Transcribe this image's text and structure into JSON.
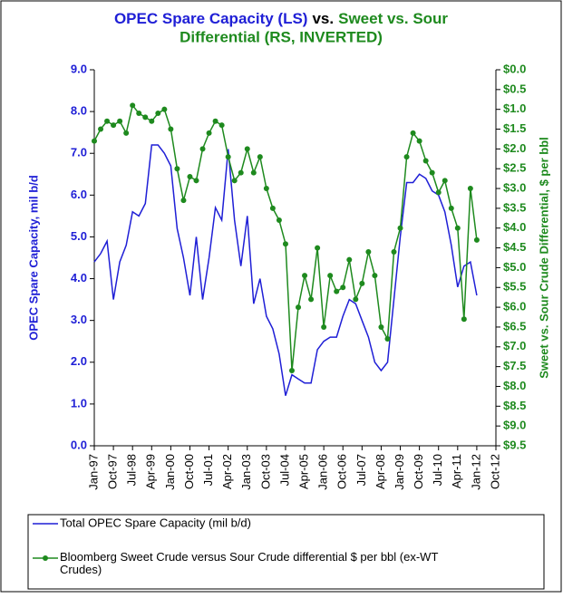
{
  "chart_data": {
    "type": "line",
    "title_parts": [
      {
        "text": "OPEC Spare Capacity (LS)",
        "color": "#1f1fd6"
      },
      {
        "text": "vs.",
        "color": "#000000"
      },
      {
        "text": "Sweet vs. Sour",
        "color": "#1e8a1e"
      },
      {
        "text": "Differential (RS, INVERTED)",
        "color": "#1e8a1e"
      }
    ],
    "y_label": "OPEC Spare Capacity, mil b/d",
    "y2_label": "Sweet vs. Sour Crude Differential, $ per bbl",
    "categories": [
      "Jan-97",
      null,
      null,
      "Oct-97",
      null,
      null,
      "Jul-98",
      null,
      null,
      "Apr-99",
      null,
      null,
      "Jan-00",
      null,
      null,
      "Oct-00",
      null,
      null,
      "Jul-01",
      null,
      null,
      "Apr-02",
      null,
      null,
      "Jan-03",
      null,
      null,
      "Oct-03",
      null,
      null,
      "Jul-04",
      null,
      null,
      "Apr-05",
      null,
      null,
      "Jan-06",
      null,
      null,
      "Oct-06",
      null,
      null,
      "Jul-07",
      null,
      null,
      "Apr-08",
      null,
      null,
      "Jan-09",
      null,
      null,
      "Oct-09",
      null,
      null,
      "Jul-10",
      null,
      null,
      "Apr-11",
      null,
      null,
      "Jan-12",
      null,
      null,
      "Oct-12"
    ],
    "series": [
      {
        "name": "Total OPEC Spare Capacity (mil b/d)",
        "color": "#1f1fd6",
        "axis": "y",
        "values": [
          4.4,
          4.6,
          4.9,
          3.5,
          4.4,
          4.8,
          5.6,
          5.5,
          5.8,
          7.2,
          7.2,
          7.0,
          6.7,
          5.2,
          4.5,
          3.6,
          5.0,
          3.5,
          4.5,
          5.7,
          5.4,
          7.1,
          5.4,
          4.3,
          5.5,
          3.4,
          4.0,
          3.1,
          2.8,
          2.2,
          1.2,
          1.7,
          1.6,
          1.5,
          1.5,
          2.3,
          2.5,
          2.6,
          2.6,
          3.1,
          3.5,
          3.4,
          3.0,
          2.6,
          2.0,
          1.8,
          2.0,
          3.5,
          5.0,
          6.3,
          6.3,
          6.5,
          6.4,
          6.1,
          6.0,
          5.6,
          4.8,
          3.8,
          4.3,
          4.4,
          3.6,
          null,
          null,
          null
        ]
      },
      {
        "name": "Bloomberg Sweet Crude versus Sour Crude differential $ per bbl (ex-WT Crudes)",
        "color": "#1e8a1e",
        "axis": "y2",
        "values": [
          1.8,
          1.5,
          1.3,
          1.4,
          1.3,
          1.6,
          0.9,
          1.1,
          1.2,
          1.3,
          1.1,
          1.0,
          1.5,
          2.5,
          3.3,
          2.7,
          2.8,
          2.0,
          1.6,
          1.3,
          1.4,
          2.2,
          2.8,
          2.6,
          2.0,
          2.6,
          2.2,
          3.0,
          3.5,
          3.8,
          4.4,
          7.6,
          6.0,
          5.2,
          5.8,
          4.5,
          6.5,
          5.2,
          5.6,
          5.5,
          4.8,
          5.8,
          5.4,
          4.6,
          5.2,
          6.5,
          6.8,
          4.6,
          4.0,
          2.2,
          1.6,
          1.8,
          2.3,
          2.6,
          3.1,
          2.8,
          3.5,
          4.0,
          6.3,
          3.0,
          4.3,
          null,
          null,
          null
        ]
      }
    ],
    "ylim": [
      0,
      9
    ],
    "yticks": [
      {
        "value": 0,
        "label": "0.0"
      },
      {
        "value": 1,
        "label": "1.0"
      },
      {
        "value": 2,
        "label": "2.0"
      },
      {
        "value": 3,
        "label": "3.0"
      },
      {
        "value": 4,
        "label": "4.0"
      },
      {
        "value": 5,
        "label": "5.0"
      },
      {
        "value": 6,
        "label": "6.0"
      },
      {
        "value": 7,
        "label": "7.0"
      },
      {
        "value": 8,
        "label": "8.0"
      },
      {
        "value": 9,
        "label": "9.0"
      }
    ],
    "y2lim": [
      0,
      9.5
    ],
    "y2_inverted": true,
    "y2ticks": [
      {
        "value": 0,
        "label": "$0.0"
      },
      {
        "value": 0.5,
        "label": "$0.5"
      },
      {
        "value": 1,
        "label": "$1.0"
      },
      {
        "value": 1.5,
        "label": "$1.5"
      },
      {
        "value": 2,
        "label": "$2.0"
      },
      {
        "value": 2.5,
        "label": "$2.5"
      },
      {
        "value": 3,
        "label": "$3.0"
      },
      {
        "value": 3.5,
        "label": "$3.5"
      },
      {
        "value": 4,
        "label": "$4.0"
      },
      {
        "value": 4.5,
        "label": "$4.5"
      },
      {
        "value": 5,
        "label": "$5.0"
      },
      {
        "value": 5.5,
        "label": "$5.5"
      },
      {
        "value": 6,
        "label": "$6.0"
      },
      {
        "value": 6.5,
        "label": "$6.5"
      },
      {
        "value": 7,
        "label": "$7.0"
      },
      {
        "value": 7.5,
        "label": "$7.5"
      },
      {
        "value": 8,
        "label": "$8.0"
      },
      {
        "value": 8.5,
        "label": "$8.5"
      },
      {
        "value": 9,
        "label": "$9.0"
      },
      {
        "value": 9.5,
        "label": "$9.5"
      }
    ],
    "grid": false
  }
}
